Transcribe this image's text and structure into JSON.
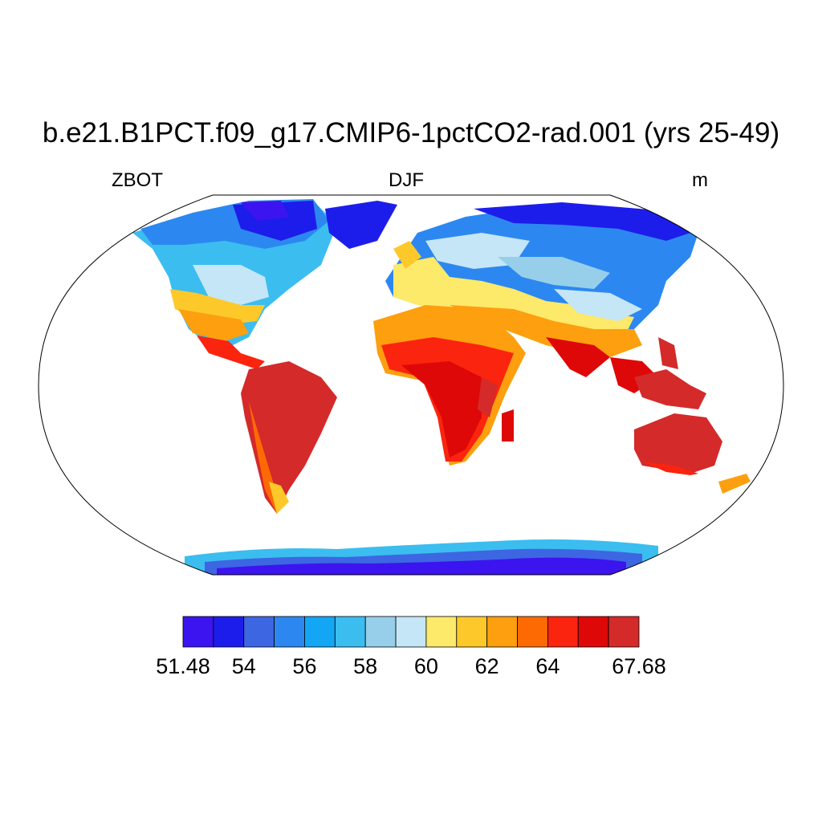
{
  "title": "b.e21.B1PCT.f09_g17.CMIP6-1pctCO2-rad.001 (yrs 25-49)",
  "subtitle_left": "ZBOT",
  "subtitle_center": "DJF",
  "subtitle_right": "m",
  "colorbar": {
    "colors": [
      "#3c14f0",
      "#1d1deb",
      "#3d66e3",
      "#2c88f0",
      "#13a6f5",
      "#3bbdf0",
      "#97cfeb",
      "#c4e6f6",
      "#fde96a",
      "#fdc92a",
      "#fd9f0e",
      "#fd6a04",
      "#fb240e",
      "#df0808",
      "#d42a2a"
    ],
    "labels": [
      "51.48",
      "54",
      "56",
      "58",
      "60",
      "62",
      "64",
      "67.68"
    ],
    "label_positions_index": [
      0,
      2,
      4,
      6,
      8,
      10,
      12,
      15
    ]
  }
}
